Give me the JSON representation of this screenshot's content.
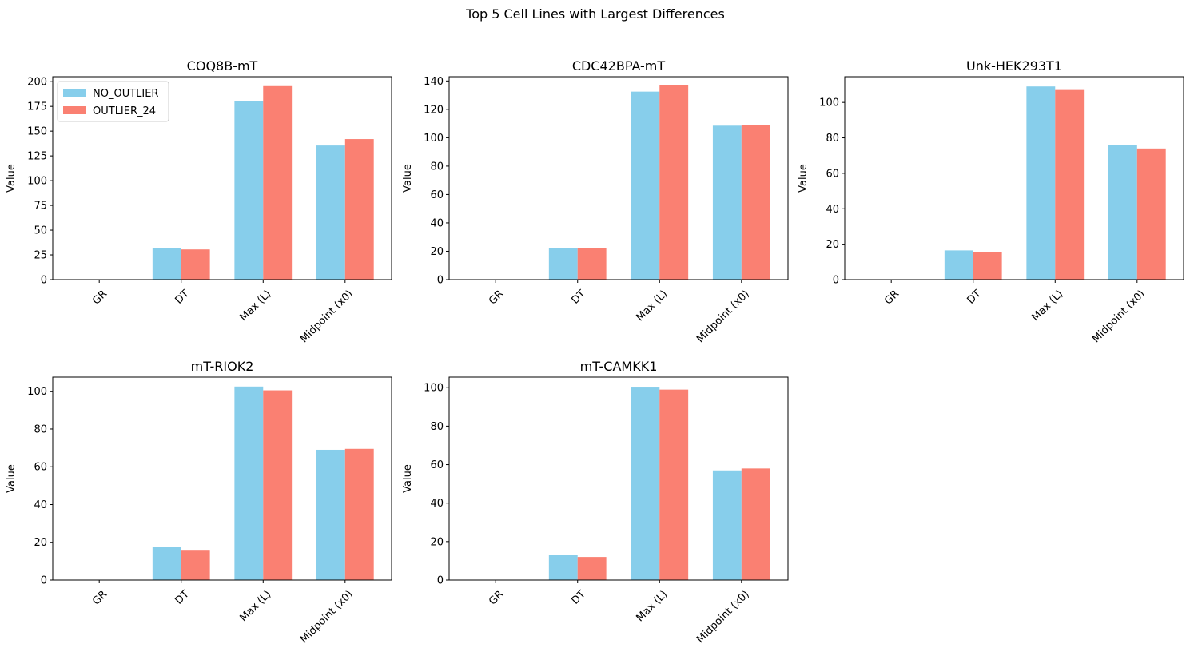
{
  "figure": {
    "suptitle": "Top 5 Cell Lines with Largest Differences"
  },
  "legend": {
    "placement": "upper left",
    "entries": [
      "NO_OUTLIER",
      "OUTLIER_24"
    ]
  },
  "colors": {
    "no_outlier": "#87ceeb",
    "outlier_24": "#fa8072"
  },
  "chart_data": [
    {
      "type": "bar",
      "title": "COQ8B-mT",
      "ylabel": "Value",
      "categories": [
        "GR",
        "DT",
        "Max (L)",
        "Midpoint (x0)"
      ],
      "ylim": [
        0,
        205
      ],
      "yticks": [
        0,
        25,
        50,
        75,
        100,
        125,
        150,
        175,
        200
      ],
      "legend": true,
      "series": [
        {
          "name": "NO_OUTLIER",
          "values": [
            0.03,
            31.5,
            180,
            135.5
          ]
        },
        {
          "name": "OUTLIER_24",
          "values": [
            0.03,
            30.5,
            195.5,
            142
          ]
        }
      ]
    },
    {
      "type": "bar",
      "title": "CDC42BPA-mT",
      "ylabel": "Value",
      "categories": [
        "GR",
        "DT",
        "Max (L)",
        "Midpoint (x0)"
      ],
      "ylim": [
        0,
        143
      ],
      "yticks": [
        0,
        20,
        40,
        60,
        80,
        100,
        120,
        140
      ],
      "legend": false,
      "series": [
        {
          "name": "NO_OUTLIER",
          "values": [
            0.03,
            22.5,
            132.5,
            108.5
          ]
        },
        {
          "name": "OUTLIER_24",
          "values": [
            0.03,
            22,
            137,
            109
          ]
        }
      ]
    },
    {
      "type": "bar",
      "title": "Unk-HEK293T1",
      "ylabel": "Value",
      "categories": [
        "GR",
        "DT",
        "Max (L)",
        "Midpoint (x0)"
      ],
      "ylim": [
        0,
        114.5
      ],
      "yticks": [
        0,
        20,
        40,
        60,
        80,
        100
      ],
      "legend": false,
      "series": [
        {
          "name": "NO_OUTLIER",
          "values": [
            0.03,
            16.5,
            109,
            76
          ]
        },
        {
          "name": "OUTLIER_24",
          "values": [
            0.03,
            15.5,
            107,
            74
          ]
        }
      ]
    },
    {
      "type": "bar",
      "title": "mT-RIOK2",
      "ylabel": "Value",
      "categories": [
        "GR",
        "DT",
        "Max (L)",
        "Midpoint (x0)"
      ],
      "ylim": [
        0,
        107.5
      ],
      "yticks": [
        0,
        20,
        40,
        60,
        80,
        100
      ],
      "legend": false,
      "series": [
        {
          "name": "NO_OUTLIER",
          "values": [
            0.03,
            17.5,
            102.5,
            69
          ]
        },
        {
          "name": "OUTLIER_24",
          "values": [
            0.03,
            16,
            100.5,
            69.5
          ]
        }
      ]
    },
    {
      "type": "bar",
      "title": "mT-CAMKK1",
      "ylabel": "Value",
      "categories": [
        "GR",
        "DT",
        "Max (L)",
        "Midpoint (x0)"
      ],
      "ylim": [
        0,
        105.5
      ],
      "yticks": [
        0,
        20,
        40,
        60,
        80,
        100
      ],
      "legend": false,
      "series": [
        {
          "name": "NO_OUTLIER",
          "values": [
            0.03,
            13,
            100.5,
            57
          ]
        },
        {
          "name": "OUTLIER_24",
          "values": [
            0.03,
            12,
            99,
            58
          ]
        }
      ]
    }
  ]
}
